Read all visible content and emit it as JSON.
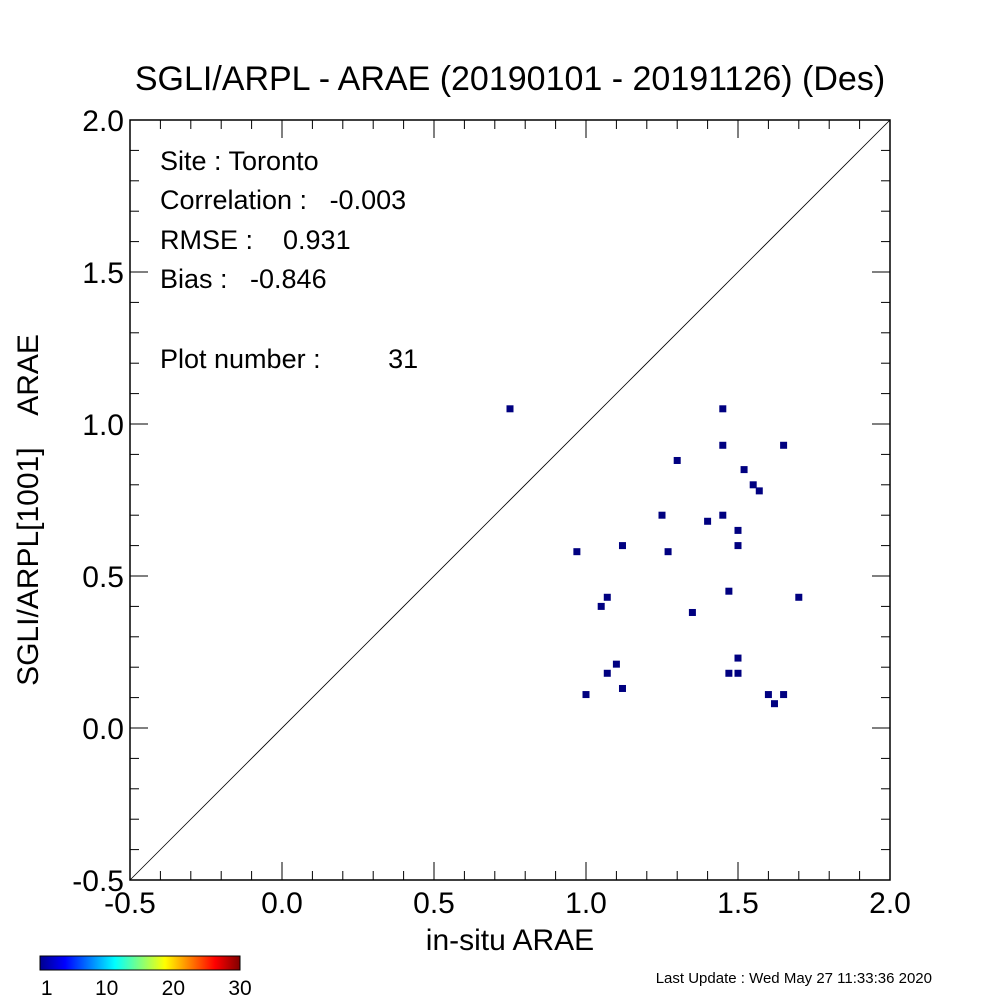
{
  "chart_data": {
    "type": "scatter",
    "title": "SGLI/ARPL - ARAE (20190101 - 20191126) (Des)",
    "xlabel": "in-situ ARAE",
    "ylabel": "SGLI/ARPL[1001]    ARAE",
    "xlim": [
      -0.5,
      2.0
    ],
    "ylim": [
      -0.5,
      2.0
    ],
    "x_ticks": [
      "-0.5",
      "0.0",
      "0.5",
      "1.0",
      "1.5",
      "2.0"
    ],
    "y_ticks": [
      "-0.5",
      "0.0",
      "0.5",
      "1.0",
      "1.5",
      "2.0"
    ],
    "one_to_one_line": true,
    "marker_color": "#000080",
    "stats": {
      "site": "Site : Toronto",
      "correlation": "Correlation :   -0.003",
      "rmse": "RMSE :    0.931",
      "bias": "Bias :   -0.846",
      "plot_number": "Plot number :         31"
    },
    "points": [
      {
        "x": 0.75,
        "y": 1.05
      },
      {
        "x": 0.97,
        "y": 0.58
      },
      {
        "x": 1.0,
        "y": 0.11
      },
      {
        "x": 1.05,
        "y": 0.4
      },
      {
        "x": 1.07,
        "y": 0.43
      },
      {
        "x": 1.07,
        "y": 0.18
      },
      {
        "x": 1.1,
        "y": 0.21
      },
      {
        "x": 1.12,
        "y": 0.13
      },
      {
        "x": 1.12,
        "y": 0.6
      },
      {
        "x": 1.25,
        "y": 0.7
      },
      {
        "x": 1.27,
        "y": 0.58
      },
      {
        "x": 1.3,
        "y": 0.88
      },
      {
        "x": 1.35,
        "y": 0.38
      },
      {
        "x": 1.4,
        "y": 0.68
      },
      {
        "x": 1.45,
        "y": 1.05
      },
      {
        "x": 1.45,
        "y": 0.93
      },
      {
        "x": 1.45,
        "y": 0.7
      },
      {
        "x": 1.47,
        "y": 0.45
      },
      {
        "x": 1.47,
        "y": 0.18
      },
      {
        "x": 1.5,
        "y": 0.18
      },
      {
        "x": 1.5,
        "y": 0.23
      },
      {
        "x": 1.5,
        "y": 0.65
      },
      {
        "x": 1.5,
        "y": 0.6
      },
      {
        "x": 1.52,
        "y": 0.85
      },
      {
        "x": 1.55,
        "y": 0.8
      },
      {
        "x": 1.57,
        "y": 0.78
      },
      {
        "x": 1.6,
        "y": 0.11
      },
      {
        "x": 1.62,
        "y": 0.08
      },
      {
        "x": 1.65,
        "y": 0.11
      },
      {
        "x": 1.65,
        "y": 0.93
      },
      {
        "x": 1.7,
        "y": 0.43
      }
    ],
    "colorbar": {
      "labels": [
        "1",
        "10",
        "20",
        "30"
      ],
      "values": [
        1,
        10,
        20,
        30
      ],
      "range": [
        0,
        30
      ]
    }
  },
  "footer": {
    "last_update": "Last Update : Wed May 27 11:33:36 2020"
  }
}
